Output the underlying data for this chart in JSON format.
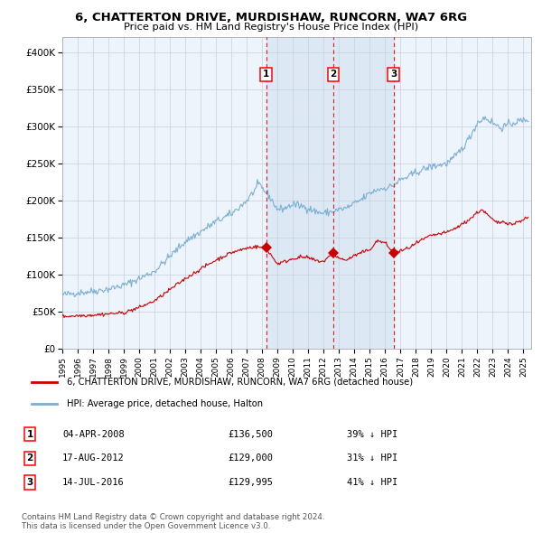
{
  "title": "6, CHATTERTON DRIVE, MURDISHAW, RUNCORN, WA7 6RG",
  "subtitle": "Price paid vs. HM Land Registry's House Price Index (HPI)",
  "legend_label_red": "6, CHATTERTON DRIVE, MURDISHAW, RUNCORN, WA7 6RG (detached house)",
  "legend_label_blue": "HPI: Average price, detached house, Halton",
  "footnote": "Contains HM Land Registry data © Crown copyright and database right 2024.\nThis data is licensed under the Open Government Licence v3.0.",
  "transactions": [
    {
      "num": 1,
      "date": "04-APR-2008",
      "price": 136500,
      "price_str": "£136,500",
      "hpi_diff": "39% ↓ HPI",
      "x_year": 2008.26
    },
    {
      "num": 2,
      "date": "17-AUG-2012",
      "price": 129000,
      "price_str": "£129,000",
      "hpi_diff": "31% ↓ HPI",
      "x_year": 2012.63
    },
    {
      "num": 3,
      "date": "14-JUL-2016",
      "price": 129995,
      "price_str": "£129,995",
      "hpi_diff": "41% ↓ HPI",
      "x_year": 2016.54
    }
  ],
  "ylim": [
    0,
    420000
  ],
  "xlim_start": 1995.0,
  "xlim_end": 2025.5,
  "plot_bg": "#eef4fb",
  "shade_color": "#dce9f5",
  "shade_start": 2008.26,
  "shade_end": 2016.54,
  "red_color": "#cc0000",
  "blue_color": "#7bafd4",
  "grid_color": "#c8d0dc"
}
